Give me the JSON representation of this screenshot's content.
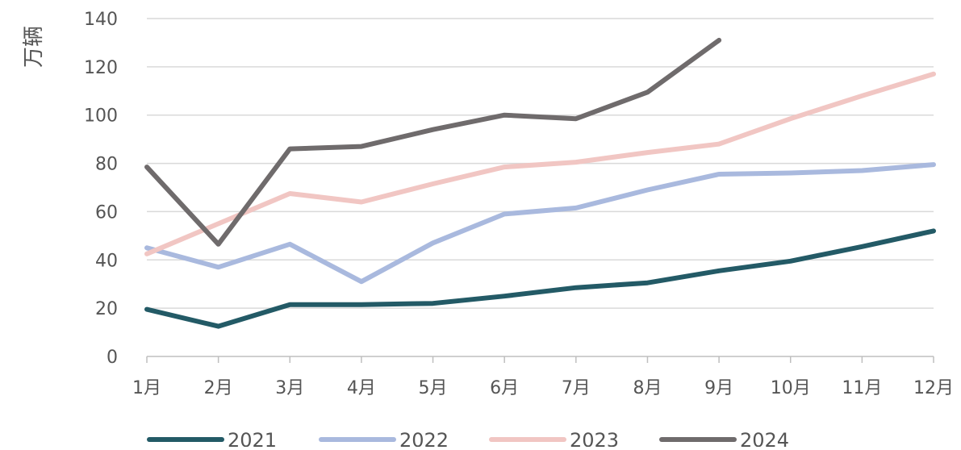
{
  "chart_data": {
    "type": "line",
    "ylabel": "万辆",
    "xlabel": "",
    "categories": [
      "1月",
      "2月",
      "3月",
      "4月",
      "5月",
      "6月",
      "7月",
      "8月",
      "9月",
      "10月",
      "11月",
      "12月"
    ],
    "ylim": [
      0,
      140
    ],
    "yticks": [
      0,
      20,
      40,
      60,
      80,
      100,
      120,
      140
    ],
    "grid": true,
    "legend_position": "bottom",
    "series": [
      {
        "name": "2021",
        "color": "#235a66",
        "values": [
          19.5,
          12.5,
          21.5,
          21.5,
          22,
          25,
          28.5,
          30.5,
          35.5,
          39.5,
          45.5,
          52
        ]
      },
      {
        "name": "2022",
        "color": "#a9b9de",
        "values": [
          45,
          37,
          46.5,
          31,
          47,
          59,
          61.5,
          69,
          75.5,
          76,
          77,
          79.5
        ]
      },
      {
        "name": "2023",
        "color": "#f1c6c3",
        "values": [
          42.5,
          55,
          67.5,
          64,
          71.5,
          78.5,
          80.5,
          84.5,
          88,
          98.5,
          108,
          117
        ]
      },
      {
        "name": "2024",
        "color": "#6f6b6c",
        "values": [
          78.5,
          46.5,
          86,
          87,
          94,
          100,
          98.5,
          109.5,
          131,
          null,
          null,
          null
        ]
      }
    ]
  }
}
